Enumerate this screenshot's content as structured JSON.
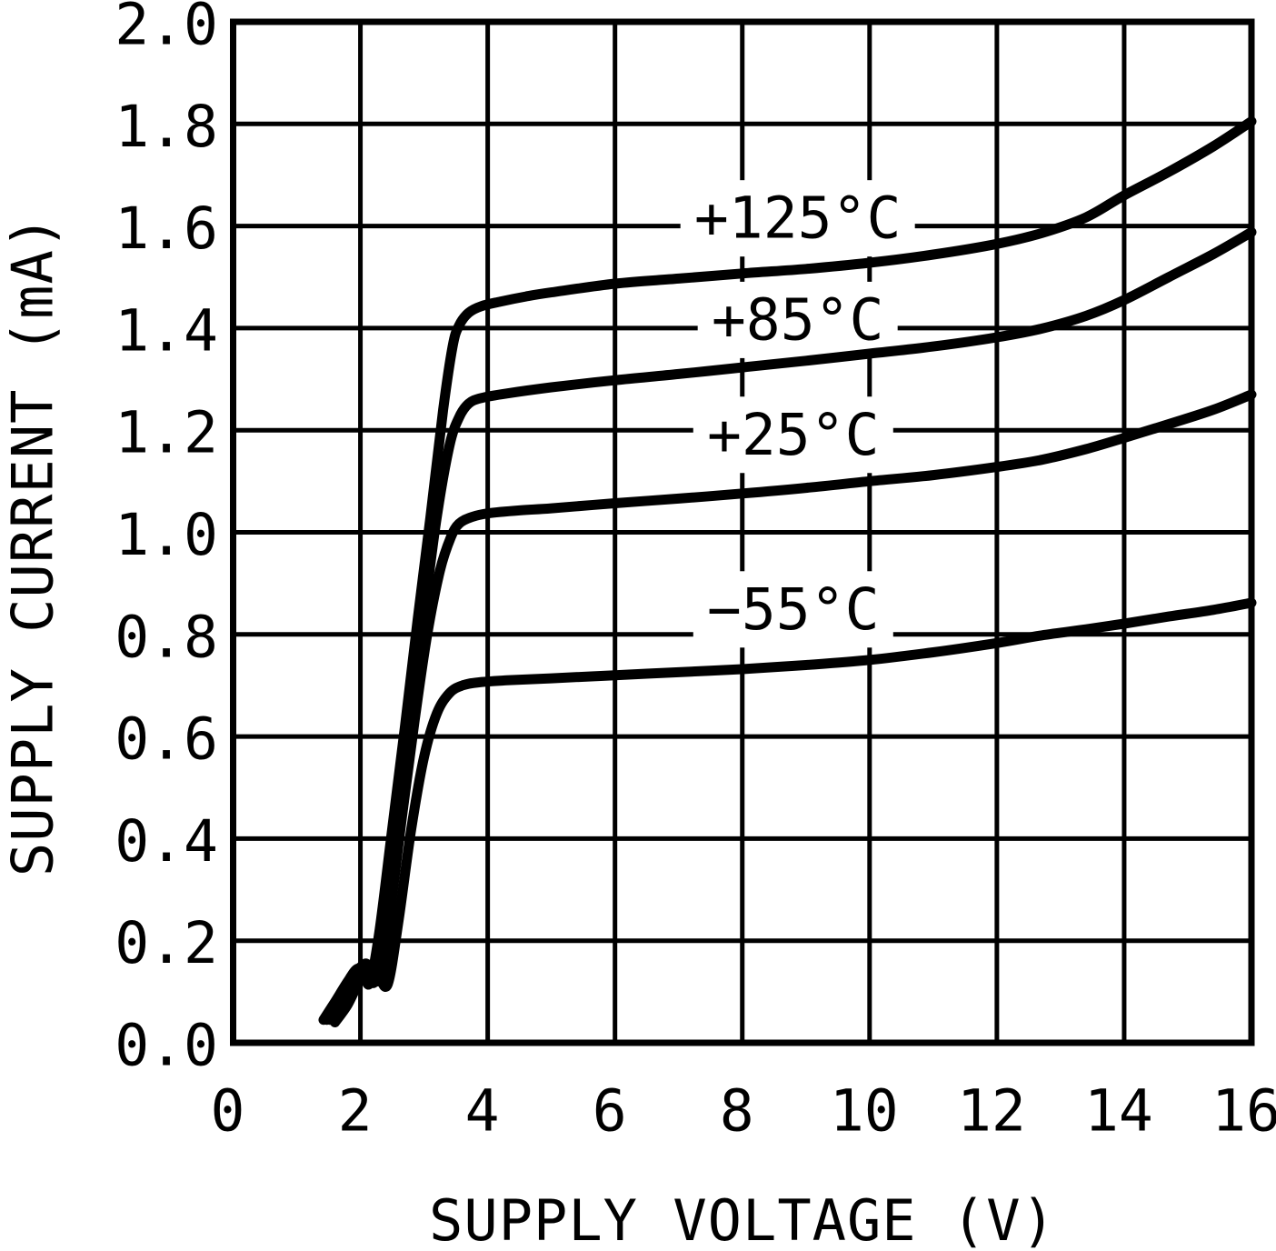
{
  "figure": {
    "background_color": "#ffffff",
    "line_color": "#000000",
    "grid_color": "#000000"
  },
  "chart_data": {
    "type": "line",
    "title": "",
    "xlabel": "SUPPLY VOLTAGE (V)",
    "ylabel": "SUPPLY CURRENT (mA)",
    "xlim": [
      0,
      16
    ],
    "ylim": [
      0,
      2
    ],
    "grid": true,
    "x_ticks": [
      {
        "value": 0,
        "label": "0"
      },
      {
        "value": 2,
        "label": "2"
      },
      {
        "value": 4,
        "label": "4"
      },
      {
        "value": 6,
        "label": "6"
      },
      {
        "value": 8,
        "label": "8"
      },
      {
        "value": 10,
        "label": "10"
      },
      {
        "value": 12,
        "label": "12"
      },
      {
        "value": 14,
        "label": "14"
      },
      {
        "value": 16,
        "label": "16"
      }
    ],
    "y_ticks": [
      {
        "value": 0.0,
        "label": "0.0"
      },
      {
        "value": 0.2,
        "label": "0.2"
      },
      {
        "value": 0.4,
        "label": "0.4"
      },
      {
        "value": 0.6,
        "label": "0.6"
      },
      {
        "value": 0.8,
        "label": "0.8"
      },
      {
        "value": 1.0,
        "label": "1.0"
      },
      {
        "value": 1.2,
        "label": "1.2"
      },
      {
        "value": 1.4,
        "label": "1.4"
      },
      {
        "value": 1.6,
        "label": "1.6"
      },
      {
        "value": 1.8,
        "label": "1.8"
      },
      {
        "value": 2.0,
        "label": "2.0"
      }
    ],
    "legend_position": "inline-labels",
    "series": [
      {
        "name": "+125°C",
        "label": "+125°C",
        "label_x": 8.87,
        "label_y": 1.615,
        "points": [
          [
            1.42,
            0.045
          ],
          [
            1.6,
            0.08
          ],
          [
            1.8,
            0.12
          ],
          [
            1.95,
            0.145
          ],
          [
            2.05,
            0.135
          ],
          [
            2.15,
            0.118
          ],
          [
            2.3,
            0.22
          ],
          [
            2.5,
            0.42
          ],
          [
            2.7,
            0.62
          ],
          [
            2.9,
            0.83
          ],
          [
            3.1,
            1.03
          ],
          [
            3.3,
            1.24
          ],
          [
            3.45,
            1.365
          ],
          [
            3.55,
            1.405
          ],
          [
            3.7,
            1.43
          ],
          [
            3.9,
            1.443
          ],
          [
            4.2,
            1.452
          ],
          [
            4.6,
            1.462
          ],
          [
            5,
            1.47
          ],
          [
            6,
            1.487
          ],
          [
            7,
            1.497
          ],
          [
            8,
            1.507
          ],
          [
            9,
            1.516
          ],
          [
            10,
            1.528
          ],
          [
            11,
            1.544
          ],
          [
            12,
            1.565
          ],
          [
            12.7,
            1.586
          ],
          [
            13.4,
            1.617
          ],
          [
            14,
            1.66
          ],
          [
            14.7,
            1.706
          ],
          [
            15.4,
            1.756
          ],
          [
            16,
            1.805
          ]
        ]
      },
      {
        "name": "+85°C",
        "label": "+85°C",
        "label_x": 8.87,
        "label_y": 1.416,
        "points": [
          [
            1.47,
            0.045
          ],
          [
            1.65,
            0.08
          ],
          [
            1.85,
            0.125
          ],
          [
            2.02,
            0.15
          ],
          [
            2.12,
            0.14
          ],
          [
            2.23,
            0.122
          ],
          [
            2.4,
            0.24
          ],
          [
            2.6,
            0.44
          ],
          [
            2.8,
            0.64
          ],
          [
            3.0,
            0.84
          ],
          [
            3.2,
            1.03
          ],
          [
            3.4,
            1.17
          ],
          [
            3.55,
            1.225
          ],
          [
            3.7,
            1.252
          ],
          [
            3.9,
            1.263
          ],
          [
            4.3,
            1.272
          ],
          [
            5,
            1.284
          ],
          [
            6,
            1.298
          ],
          [
            7,
            1.31
          ],
          [
            8,
            1.323
          ],
          [
            9,
            1.336
          ],
          [
            10,
            1.35
          ],
          [
            11,
            1.364
          ],
          [
            12,
            1.382
          ],
          [
            12.7,
            1.399
          ],
          [
            13.4,
            1.424
          ],
          [
            14,
            1.455
          ],
          [
            14.7,
            1.5
          ],
          [
            15.4,
            1.545
          ],
          [
            16,
            1.588
          ]
        ]
      },
      {
        "name": "+25°C",
        "label": "+25°C",
        "label_x": 8.8,
        "label_y": 1.191,
        "points": [
          [
            1.52,
            0.045
          ],
          [
            1.7,
            0.08
          ],
          [
            1.9,
            0.13
          ],
          [
            2.07,
            0.155
          ],
          [
            2.17,
            0.143
          ],
          [
            2.3,
            0.125
          ],
          [
            2.45,
            0.24
          ],
          [
            2.65,
            0.44
          ],
          [
            2.85,
            0.63
          ],
          [
            3.05,
            0.8
          ],
          [
            3.25,
            0.925
          ],
          [
            3.42,
            0.99
          ],
          [
            3.55,
            1.017
          ],
          [
            3.75,
            1.03
          ],
          [
            4,
            1.037
          ],
          [
            4.5,
            1.043
          ],
          [
            5,
            1.047
          ],
          [
            6,
            1.057
          ],
          [
            7,
            1.066
          ],
          [
            8,
            1.076
          ],
          [
            9,
            1.087
          ],
          [
            10,
            1.1
          ],
          [
            11,
            1.112
          ],
          [
            12,
            1.128
          ],
          [
            12.7,
            1.142
          ],
          [
            13.4,
            1.163
          ],
          [
            14,
            1.185
          ],
          [
            14.7,
            1.212
          ],
          [
            15.4,
            1.24
          ],
          [
            16,
            1.27
          ]
        ]
      },
      {
        "name": "−55°C",
        "label": "−55°C",
        "label_x": 8.8,
        "label_y": 0.849,
        "points": [
          [
            1.6,
            0.04
          ],
          [
            1.8,
            0.075
          ],
          [
            2.0,
            0.125
          ],
          [
            2.15,
            0.148
          ],
          [
            2.28,
            0.133
          ],
          [
            2.43,
            0.115
          ],
          [
            2.6,
            0.24
          ],
          [
            2.8,
            0.42
          ],
          [
            3.0,
            0.56
          ],
          [
            3.2,
            0.645
          ],
          [
            3.4,
            0.685
          ],
          [
            3.6,
            0.7
          ],
          [
            3.85,
            0.706
          ],
          [
            4.3,
            0.71
          ],
          [
            5,
            0.714
          ],
          [
            6,
            0.72
          ],
          [
            7,
            0.726
          ],
          [
            8,
            0.732
          ],
          [
            9,
            0.74
          ],
          [
            10,
            0.75
          ],
          [
            11,
            0.765
          ],
          [
            12,
            0.783
          ],
          [
            12.7,
            0.798
          ],
          [
            13.4,
            0.81
          ],
          [
            14,
            0.821
          ],
          [
            14.7,
            0.835
          ],
          [
            15.4,
            0.848
          ],
          [
            16,
            0.862
          ]
        ]
      }
    ]
  }
}
